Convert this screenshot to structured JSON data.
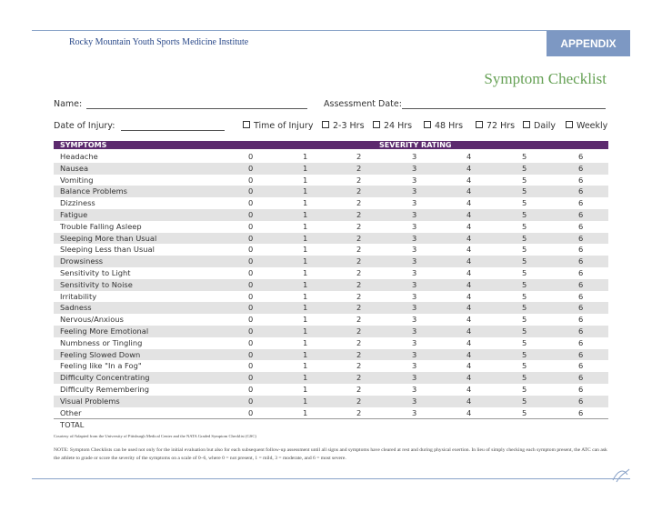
{
  "header": {
    "institute": "Rocky Mountain Youth Sports Medicine Institute",
    "tab": "APPENDIX"
  },
  "title": "Symptom Checklist",
  "form": {
    "name_label": "Name:",
    "assessment_label": "Assessment Date:",
    "injury_label": "Date of Injury:",
    "options": [
      "Time of Injury",
      "2-3 Hrs",
      "24 Hrs",
      "48 Hrs",
      "72 Hrs",
      "Daily",
      "Weekly"
    ]
  },
  "table": {
    "headers": [
      "SYMPTOMS",
      "SEVERITY RATING"
    ],
    "rows": [
      [
        "Headache",
        0,
        1,
        2,
        3,
        4,
        5,
        6
      ],
      [
        "Nausea",
        0,
        1,
        2,
        3,
        4,
        5,
        6
      ],
      [
        "Vomiting",
        0,
        1,
        2,
        3,
        4,
        5,
        6
      ],
      [
        "Balance Problems",
        0,
        1,
        2,
        3,
        4,
        5,
        6
      ],
      [
        "Dizziness",
        0,
        1,
        2,
        3,
        4,
        5,
        6
      ],
      [
        "Fatigue",
        0,
        1,
        2,
        3,
        4,
        5,
        6
      ],
      [
        "Trouble Falling Asleep",
        0,
        1,
        2,
        3,
        4,
        5,
        6
      ],
      [
        "Sleeping More than Usual",
        0,
        1,
        2,
        3,
        4,
        5,
        6
      ],
      [
        "Sleeping Less than Usual",
        0,
        1,
        2,
        3,
        4,
        5,
        6
      ],
      [
        "Drowsiness",
        0,
        1,
        2,
        3,
        4,
        5,
        6
      ],
      [
        "Sensitivity to Light",
        0,
        1,
        2,
        3,
        4,
        5,
        6
      ],
      [
        "Sensitivity to Noise",
        0,
        1,
        2,
        3,
        4,
        5,
        6
      ],
      [
        "Irritability",
        0,
        1,
        2,
        3,
        4,
        5,
        6
      ],
      [
        "Sadness",
        0,
        1,
        2,
        3,
        4,
        5,
        6
      ],
      [
        "Nervous/Anxious",
        0,
        1,
        2,
        3,
        4,
        5,
        6
      ],
      [
        "Feeling More Emotional",
        0,
        1,
        2,
        3,
        4,
        5,
        6
      ],
      [
        "Numbness or Tingling",
        0,
        1,
        2,
        3,
        4,
        5,
        6
      ],
      [
        "Feeling Slowed Down",
        0,
        1,
        2,
        3,
        4,
        5,
        6
      ],
      [
        "Feeling like \"In a Fog\"",
        0,
        1,
        2,
        3,
        4,
        5,
        6
      ],
      [
        "Difficulty Concentrating",
        0,
        1,
        2,
        3,
        4,
        5,
        6
      ],
      [
        "Difficulty Remembering",
        0,
        1,
        2,
        3,
        4,
        5,
        6
      ],
      [
        "Visual Problems",
        0,
        1,
        2,
        3,
        4,
        5,
        6
      ],
      [
        "Other",
        0,
        1,
        2,
        3,
        4,
        5,
        6
      ]
    ],
    "total": "TOTAL"
  },
  "footnote": "Courtesy of/Adapted from the University of Pittsburgh Medical Center and the NATA Graded Symptom Checklist (GSC)",
  "note": "NOTE: Symptom Checklists can be used not only for the initial evaluation but also for each subsequent follow-up assessment until all signs and symptoms have cleared at rest and during physical exertion. In lieu of simply checking each symptom present, the ATC can ask the athlete to grade or score the severity of the symptoms on a scale of 0–6, where 0 = not present, 1 = mild, 3 = moderate, and 6 = most severe."
}
